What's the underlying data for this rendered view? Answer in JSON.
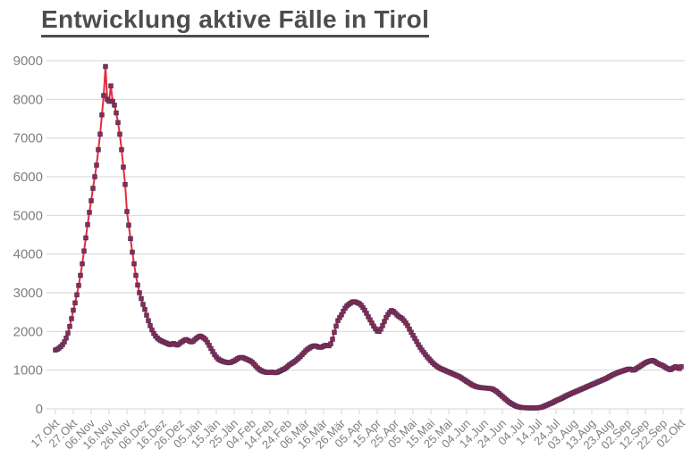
{
  "title": "Entwicklung aktive Fälle in Tirol",
  "chart_data": {
    "type": "line",
    "title": "Entwicklung aktive Fälle in Tirol",
    "xlabel": "",
    "ylabel": "",
    "ylim": [
      0,
      9000
    ],
    "y_ticks": [
      0,
      1000,
      2000,
      3000,
      4000,
      5000,
      6000,
      7000,
      8000,
      9000
    ],
    "grid": "horizontal",
    "legend_position": "none",
    "x_description": "daily values, one point per day, labels every 10 days",
    "x_tick_labels": [
      "17.Okt",
      "27.Okt",
      "06.Nov",
      "16.Nov",
      "26.Nov",
      "06.Dez",
      "16.Dez",
      "26.Dez",
      "05.Jän",
      "15.Jän",
      "25.Jän",
      "04.Feb",
      "14.Feb",
      "24.Feb",
      "06.Mär",
      "16.Mär",
      "26.Mär",
      "05.Apr",
      "15.Apr",
      "25.Apr",
      "05.Mai",
      "15.Mai",
      "25.Mai",
      "04.Jun",
      "14.Jun",
      "24.Jun",
      "04.Jul",
      "14.Jul",
      "24.Jul",
      "03.Aug",
      "13.Aug",
      "23.Aug",
      "02.Sep",
      "12.Sep",
      "22.Sep",
      "02.Okt"
    ],
    "x_tick_interval_days": 10,
    "colors": {
      "line": "#e42b3d",
      "marker_fill": "#8c2d52",
      "marker_border": "#5c2b56",
      "grid": "#d6d6d6",
      "axis_text": "#7f7f7f",
      "title_text": "#4d4d4d"
    },
    "series": [
      {
        "name": "aktive Fälle",
        "marker": "square",
        "values": [
          1520,
          1540,
          1570,
          1610,
          1660,
          1730,
          1830,
          1960,
          2130,
          2330,
          2550,
          2740,
          2950,
          3190,
          3450,
          3750,
          4080,
          4420,
          4760,
          5080,
          5380,
          5700,
          6000,
          6300,
          6700,
          7100,
          7600,
          8100,
          8850,
          8000,
          7950,
          8350,
          7950,
          7850,
          7650,
          7400,
          7100,
          6700,
          6250,
          5800,
          5100,
          4750,
          4400,
          4050,
          3750,
          3450,
          3200,
          3000,
          2850,
          2700,
          2570,
          2420,
          2280,
          2150,
          2040,
          1950,
          1880,
          1830,
          1790,
          1760,
          1740,
          1720,
          1700,
          1680,
          1660,
          1670,
          1690,
          1670,
          1650,
          1670,
          1710,
          1740,
          1770,
          1790,
          1770,
          1750,
          1730,
          1750,
          1790,
          1830,
          1860,
          1880,
          1860,
          1830,
          1790,
          1720,
          1640,
          1560,
          1480,
          1400,
          1340,
          1290,
          1260,
          1240,
          1220,
          1210,
          1200,
          1190,
          1200,
          1220,
          1240,
          1270,
          1300,
          1320,
          1330,
          1320,
          1300,
          1280,
          1260,
          1240,
          1210,
          1160,
          1110,
          1060,
          1020,
          990,
          970,
          955,
          945,
          940,
          945,
          950,
          940,
          935,
          945,
          965,
          985,
          1010,
          1030,
          1060,
          1100,
          1140,
          1170,
          1200,
          1230,
          1270,
          1310,
          1350,
          1400,
          1450,
          1500,
          1540,
          1570,
          1600,
          1620,
          1630,
          1620,
          1600,
          1590,
          1600,
          1620,
          1640,
          1640,
          1630,
          1680,
          1800,
          1980,
          2140,
          2280,
          2360,
          2430,
          2520,
          2600,
          2660,
          2700,
          2730,
          2760,
          2770,
          2760,
          2740,
          2720,
          2680,
          2620,
          2550,
          2470,
          2380,
          2300,
          2220,
          2140,
          2070,
          2010,
          2000,
          2060,
          2150,
          2260,
          2360,
          2440,
          2500,
          2540,
          2520,
          2480,
          2430,
          2390,
          2360,
          2330,
          2280,
          2220,
          2150,
          2060,
          1980,
          1900,
          1820,
          1740,
          1660,
          1590,
          1520,
          1460,
          1400,
          1340,
          1290,
          1240,
          1190,
          1150,
          1110,
          1080,
          1050,
          1030,
          1010,
          990,
          970,
          950,
          930,
          910,
          890,
          870,
          850,
          830,
          800,
          770,
          740,
          710,
          680,
          650,
          620,
          600,
          580,
          565,
          555,
          550,
          545,
          540,
          535,
          530,
          525,
          520,
          500,
          470,
          440,
          400,
          360,
          320,
          280,
          240,
          200,
          165,
          135,
          110,
          85,
          65,
          50,
          40,
          35,
          30,
          28,
          25,
          24,
          23,
          22,
          22,
          24,
          28,
          35,
          45,
          60,
          80,
          100,
          120,
          140,
          160,
          185,
          210,
          230,
          250,
          270,
          295,
          320,
          345,
          365,
          385,
          405,
          425,
          445,
          465,
          485,
          505,
          525,
          545,
          565,
          585,
          605,
          625,
          645,
          665,
          685,
          705,
          725,
          745,
          765,
          785,
          810,
          835,
          860,
          885,
          905,
          925,
          945,
          960,
          975,
          990,
          1005,
          1020,
          1030,
          1020,
          1000,
          1010,
          1040,
          1070,
          1100,
          1130,
          1160,
          1190,
          1210,
          1230,
          1240,
          1250,
          1230,
          1200,
          1170,
          1150,
          1130,
          1110,
          1080,
          1050,
          1030,
          1010,
          1040,
          1070,
          1090,
          1060,
          1040,
          1090
        ]
      }
    ]
  }
}
